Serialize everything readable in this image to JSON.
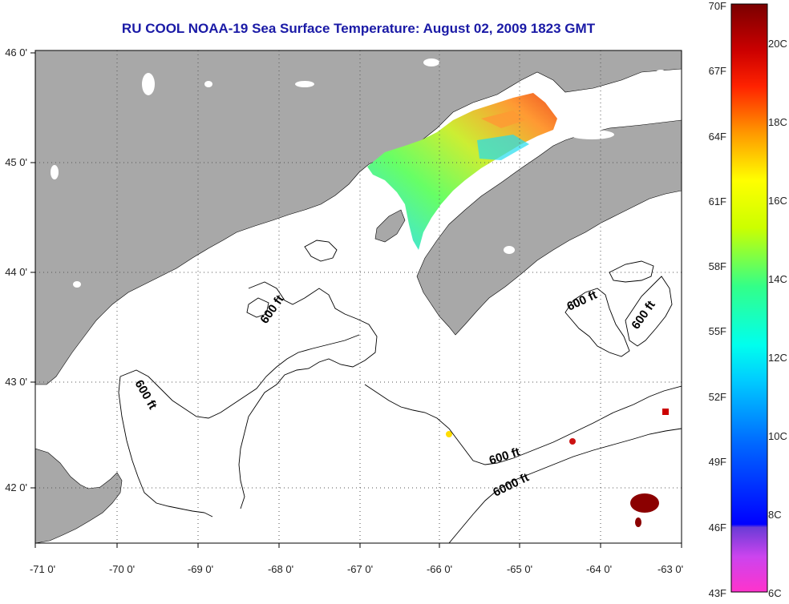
{
  "title": "RU COOL  NOAA-19  Sea Surface Temperature:  August 02, 2009 1823 GMT",
  "map": {
    "lat_ticks": [
      "46 0'",
      "45 0'",
      "44 0'",
      "43 0'",
      "42 0'"
    ],
    "lon_ticks": [
      "-71 0'",
      "-70 0'",
      "-69 0'",
      "-68 0'",
      "-67 0'",
      "-66 0'",
      "-65 0'",
      "-64 0'",
      "-63 0'"
    ],
    "contour_labels": [
      "600 ft",
      "600 ft",
      "600 ft",
      "600 ft",
      "600 ft",
      "6000 ft"
    ],
    "colors": {
      "land": "#a8a8a8",
      "ocean": "#ffffff",
      "gridlines": "#555555",
      "title": "#1a1aa6"
    }
  },
  "colorbar": {
    "fahrenheit_labels": [
      "70F",
      "67F",
      "64F",
      "61F",
      "58F",
      "55F",
      "52F",
      "49F",
      "46F",
      "43F"
    ],
    "celsius_labels": [
      "20C",
      "18C",
      "16C",
      "14C",
      "12C",
      "10C",
      "8C",
      "6C"
    ]
  }
}
